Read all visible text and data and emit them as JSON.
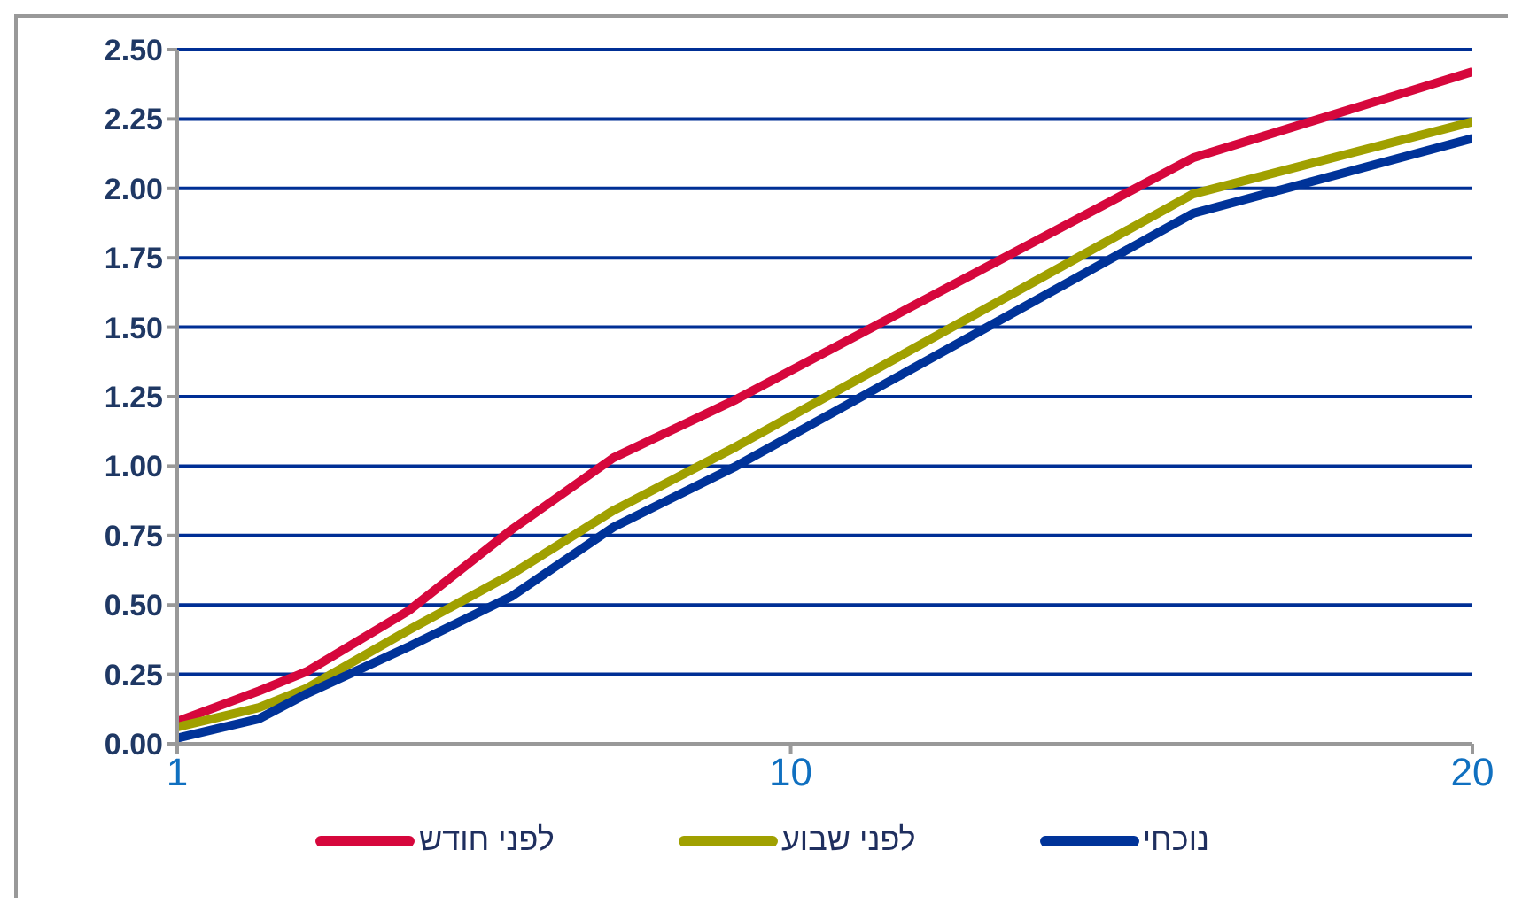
{
  "chart_data": {
    "type": "line",
    "x": [
      1,
      2.2,
      2.9,
      4.4,
      5.9,
      7.4,
      9.2,
      15.9,
      20
    ],
    "series": [
      {
        "name": "לפני חודש",
        "color": "#d6073c",
        "values": [
          0.08,
          0.19,
          0.26,
          0.48,
          0.77,
          1.03,
          1.24,
          2.11,
          2.42
        ]
      },
      {
        "name": "לפני שבוע",
        "color": "#a0a000",
        "values": [
          0.06,
          0.13,
          0.2,
          0.41,
          0.61,
          0.84,
          1.07,
          1.98,
          2.24
        ]
      },
      {
        "name": "נוכחי",
        "color": "#003399",
        "values": [
          0.02,
          0.09,
          0.18,
          0.35,
          0.53,
          0.78,
          1.0,
          1.91,
          2.18
        ]
      }
    ],
    "xlim": [
      1,
      20
    ],
    "xticks": [
      1,
      10,
      20
    ],
    "ylim": [
      0,
      2.5
    ],
    "yticks": [
      {
        "value": 0,
        "label": "0.00"
      },
      {
        "value": 0.25,
        "label": "0.25"
      },
      {
        "value": 0.5,
        "label": "0.50"
      },
      {
        "value": 0.75,
        "label": "0.75"
      },
      {
        "value": 1,
        "label": "1.00"
      },
      {
        "value": 1.25,
        "label": "1.25"
      },
      {
        "value": 1.5,
        "label": "1.50"
      },
      {
        "value": 1.75,
        "label": "1.75"
      },
      {
        "value": 2,
        "label": "2.00"
      },
      {
        "value": 2.25,
        "label": "2.25"
      },
      {
        "value": 2.5,
        "label": "2.50"
      }
    ],
    "grid": "y",
    "legend": "bottom",
    "marker": "none",
    "line_style": "solid"
  }
}
